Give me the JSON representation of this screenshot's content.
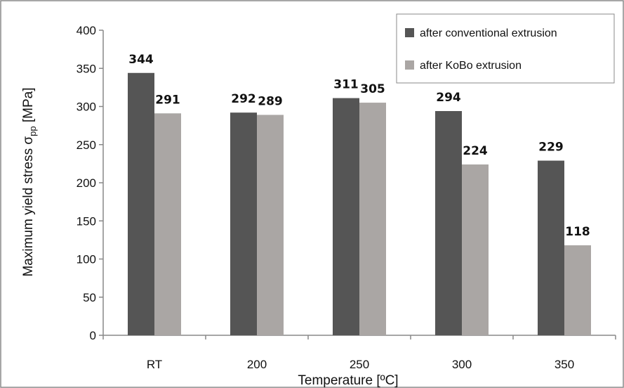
{
  "chart_data": {
    "type": "bar",
    "title": "",
    "xlabel": "Temperature [ºC]",
    "ylabel_main": "Maximum yield stress σ",
    "ylabel_sub": "pp",
    "ylabel_unit": " [MPa]",
    "categories": [
      "RT",
      "200",
      "250",
      "300",
      "350"
    ],
    "series": [
      {
        "name": "after conventional  extrusion",
        "color": "#555555",
        "values": [
          344,
          292,
          311,
          294,
          229
        ]
      },
      {
        "name": "after KoBo extrusion",
        "color": "#aaa6a4",
        "values": [
          291,
          289,
          305,
          224,
          118
        ]
      }
    ],
    "ylim": [
      0,
      400
    ],
    "yticks": [
      "0",
      "50",
      "100",
      "150",
      "200",
      "250",
      "300",
      "350",
      "400"
    ],
    "grid": false,
    "legend_position": "top-right"
  }
}
